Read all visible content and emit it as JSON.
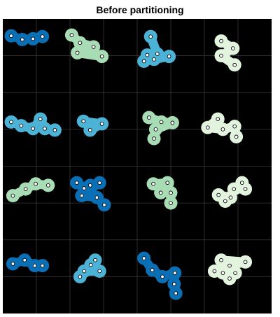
{
  "chart_data": {
    "type": "scatter",
    "title": "Before partitioning",
    "xlabel": "",
    "ylabel": "",
    "xlim": [
      0,
      8
    ],
    "ylim": [
      0,
      8
    ],
    "grid": true,
    "background": "#000000",
    "grid_color": "#3a3a3a",
    "palette": {
      "dark_blue": "#0a6fb5",
      "cyan": "#4cb3d6",
      "light_green": "#a8dcb5",
      "pale_green": "#e2f4de"
    },
    "clusters": [
      {
        "color": "dark_blue",
        "points": [
          [
            0.25,
            7.54
          ],
          [
            0.58,
            7.44
          ],
          [
            0.9,
            7.46
          ],
          [
            1.18,
            7.52
          ]
        ]
      },
      {
        "color": "light_green",
        "points": [
          [
            2.05,
            7.56
          ],
          [
            2.3,
            7.35
          ],
          [
            2.7,
            7.24
          ],
          [
            2.22,
            7.08
          ],
          [
            2.95,
            6.98
          ]
        ]
      },
      {
        "color": "cyan",
        "points": [
          [
            4.4,
            7.52
          ],
          [
            4.6,
            7.05
          ],
          [
            4.3,
            7.02
          ],
          [
            4.95,
            6.98
          ],
          [
            4.5,
            6.9
          ],
          [
            4.2,
            6.85
          ]
        ]
      },
      {
        "color": "pale_green",
        "points": [
          [
            6.5,
            7.4
          ],
          [
            6.85,
            7.2
          ],
          [
            6.5,
            7.0
          ],
          [
            6.9,
            6.75
          ]
        ]
      },
      {
        "color": "cyan",
        "points": [
          [
            0.25,
            5.2
          ],
          [
            0.55,
            5.1
          ],
          [
            0.9,
            5.02
          ],
          [
            1.12,
            5.28
          ],
          [
            1.25,
            5.02
          ],
          [
            1.55,
            4.98
          ]
        ]
      },
      {
        "color": "cyan",
        "points": [
          [
            2.4,
            5.22
          ],
          [
            2.95,
            5.15
          ],
          [
            2.6,
            4.98
          ]
        ]
      },
      {
        "color": "light_green",
        "points": [
          [
            4.35,
            5.32
          ],
          [
            4.72,
            5.2
          ],
          [
            5.05,
            5.18
          ],
          [
            4.55,
            5.0
          ],
          [
            4.5,
            4.75
          ]
        ]
      },
      {
        "color": "pale_green",
        "points": [
          [
            6.4,
            5.28
          ],
          [
            6.1,
            5.05
          ],
          [
            6.55,
            5.0
          ],
          [
            6.9,
            5.08
          ],
          [
            6.95,
            4.8
          ]
        ]
      },
      {
        "color": "light_green",
        "points": [
          [
            0.3,
            3.2
          ],
          [
            0.68,
            3.38
          ],
          [
            0.98,
            3.52
          ],
          [
            1.35,
            3.48
          ]
        ]
      },
      {
        "color": "dark_blue",
        "points": [
          [
            2.2,
            3.55
          ],
          [
            2.42,
            3.4
          ],
          [
            2.6,
            3.48
          ],
          [
            2.88,
            3.55
          ],
          [
            2.35,
            3.2
          ],
          [
            2.8,
            3.15
          ],
          [
            3.02,
            2.95
          ]
        ]
      },
      {
        "color": "light_green",
        "points": [
          [
            4.48,
            3.52
          ],
          [
            4.9,
            3.55
          ],
          [
            4.7,
            3.28
          ],
          [
            5.0,
            3.28
          ],
          [
            5.0,
            3.0
          ]
        ]
      },
      {
        "color": "pale_green",
        "points": [
          [
            7.12,
            3.55
          ],
          [
            7.22,
            3.38
          ],
          [
            6.88,
            3.38
          ],
          [
            6.78,
            3.15
          ],
          [
            6.42,
            3.22
          ],
          [
            6.62,
            3.05
          ]
        ]
      },
      {
        "color": "dark_blue",
        "points": [
          [
            0.3,
            1.35
          ],
          [
            0.65,
            1.45
          ],
          [
            0.95,
            1.3
          ],
          [
            1.18,
            1.3
          ]
        ]
      },
      {
        "color": "cyan",
        "points": [
          [
            2.75,
            1.45
          ],
          [
            2.62,
            1.32
          ],
          [
            2.88,
            1.15
          ],
          [
            2.42,
            1.15
          ],
          [
            2.3,
            1.0
          ]
        ]
      },
      {
        "color": "dark_blue",
        "points": [
          [
            4.2,
            1.5
          ],
          [
            4.45,
            1.18
          ],
          [
            4.75,
            1.0
          ],
          [
            5.12,
            1.1
          ],
          [
            5.1,
            0.8
          ],
          [
            5.15,
            0.55
          ]
        ]
      },
      {
        "color": "pale_green",
        "points": [
          [
            6.5,
            1.45
          ],
          [
            7.22,
            1.4
          ],
          [
            6.75,
            1.3
          ],
          [
            6.3,
            1.15
          ],
          [
            6.55,
            1.1
          ],
          [
            6.92,
            1.1
          ],
          [
            6.75,
            0.95
          ]
        ]
      }
    ]
  }
}
